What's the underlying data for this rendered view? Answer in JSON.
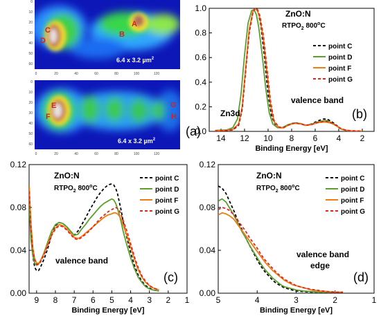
{
  "panel_a": {
    "label": "(a)",
    "map_top": {
      "scale_text": "6.4 x 3.2 µm",
      "scale_sup": "2",
      "point_labels": [
        "C",
        "D",
        "A",
        "B"
      ],
      "x_ticks": [
        "0",
        "20",
        "40",
        "60",
        "80",
        "100",
        "120"
      ],
      "y_ticks": [
        "0",
        "10",
        "20",
        "30",
        "40",
        "50",
        "60"
      ]
    },
    "map_bottom": {
      "scale_text": "6.4 x 3.2 µm",
      "scale_sup": "2",
      "point_labels": [
        "E",
        "F",
        "G",
        "H"
      ],
      "x_ticks": [
        "0",
        "20",
        "40",
        "60",
        "80",
        "100",
        "120"
      ],
      "y_ticks": [
        "0",
        "10",
        "20",
        "30",
        "40",
        "50",
        "60"
      ]
    }
  },
  "colors": {
    "point_c": "#000000",
    "point_d": "#5aa02c",
    "point_f": "#f07c10",
    "point_g": "#e8231c",
    "label_red": "#d42020"
  },
  "chart_data": [
    {
      "id": "b",
      "type": "line",
      "panel_label": "(b)",
      "title": "ZnO:N",
      "subtitle_parts": [
        "RTPO",
        "2",
        " 800",
        "o",
        "C"
      ],
      "xlabel": "Binding Energy [eV]",
      "xlim": [
        15,
        1
      ],
      "ylim": [
        0,
        1.0
      ],
      "x_reversed": true,
      "x_ticks": [
        14,
        12,
        10,
        8,
        6,
        4,
        2
      ],
      "y_ticks": [
        0.0,
        0.2,
        0.4,
        0.6,
        0.8,
        1.0
      ],
      "y_tick_labels": [
        "0.0",
        "0.2",
        "0.4",
        "0.6",
        "0.8",
        "1.0"
      ],
      "annotations": [
        "Zn3d",
        "valence band"
      ],
      "legend_position": "right",
      "series": [
        {
          "name": "point C",
          "style": "dashed",
          "x": [
            14.5,
            13.5,
            13.0,
            12.5,
            12.2,
            11.9,
            11.6,
            11.3,
            11.1,
            11.0,
            10.8,
            10.6,
            10.3,
            10.0,
            9.7,
            9.3,
            8.8,
            8.3,
            7.8,
            7.3,
            6.8,
            6.3,
            5.8,
            5.3,
            5.0,
            4.6,
            4.2,
            3.8,
            3.4,
            3.0,
            2.0
          ],
          "y": [
            0.005,
            0.008,
            0.012,
            0.05,
            0.18,
            0.5,
            0.82,
            0.97,
            1.0,
            1.0,
            0.95,
            0.85,
            0.6,
            0.3,
            0.12,
            0.04,
            0.03,
            0.05,
            0.07,
            0.065,
            0.05,
            0.06,
            0.085,
            0.1,
            0.1,
            0.08,
            0.05,
            0.02,
            0.01,
            0.005,
            0.002
          ]
        },
        {
          "name": "point D",
          "style": "solid",
          "x": [
            14.5,
            13.5,
            13.0,
            12.6,
            12.3,
            12.0,
            11.7,
            11.4,
            11.2,
            11.0,
            10.8,
            10.5,
            10.2,
            9.9,
            9.6,
            9.2,
            8.8,
            8.3,
            7.8,
            7.3,
            6.8,
            6.3,
            5.8,
            5.3,
            5.0,
            4.6,
            4.2,
            3.8,
            3.4,
            3.0,
            2.0
          ],
          "y": [
            0.008,
            0.012,
            0.03,
            0.1,
            0.3,
            0.62,
            0.88,
            0.98,
            0.99,
            0.95,
            0.85,
            0.62,
            0.35,
            0.15,
            0.06,
            0.03,
            0.03,
            0.055,
            0.068,
            0.064,
            0.05,
            0.058,
            0.076,
            0.086,
            0.088,
            0.07,
            0.045,
            0.018,
            0.008,
            0.004,
            0.002
          ]
        },
        {
          "name": "point F",
          "style": "solid",
          "x": [
            14.5,
            13.5,
            13.0,
            12.5,
            12.2,
            11.9,
            11.6,
            11.3,
            11.1,
            10.9,
            10.7,
            10.4,
            10.1,
            9.8,
            9.5,
            9.1,
            8.7,
            8.3,
            7.8,
            7.3,
            6.8,
            6.3,
            5.8,
            5.3,
            5.0,
            4.6,
            4.2,
            3.8,
            3.4,
            3.0,
            2.0
          ],
          "y": [
            0.005,
            0.008,
            0.015,
            0.06,
            0.2,
            0.52,
            0.83,
            0.97,
            1.0,
            0.98,
            0.92,
            0.75,
            0.48,
            0.22,
            0.08,
            0.03,
            0.028,
            0.05,
            0.065,
            0.062,
            0.048,
            0.055,
            0.07,
            0.076,
            0.075,
            0.065,
            0.045,
            0.02,
            0.009,
            0.004,
            0.002
          ]
        },
        {
          "name": "point G",
          "style": "dashed",
          "x": [
            14.5,
            13.5,
            13.0,
            12.5,
            12.2,
            11.9,
            11.6,
            11.3,
            11.1,
            10.9,
            10.7,
            10.4,
            10.1,
            9.8,
            9.5,
            9.1,
            8.7,
            8.3,
            7.8,
            7.3,
            6.8,
            6.3,
            5.8,
            5.3,
            5.0,
            4.6,
            4.2,
            3.8,
            3.4,
            3.0,
            2.0
          ],
          "y": [
            0.005,
            0.008,
            0.015,
            0.055,
            0.19,
            0.5,
            0.8,
            0.96,
            1.0,
            0.99,
            0.94,
            0.78,
            0.52,
            0.25,
            0.09,
            0.035,
            0.03,
            0.05,
            0.066,
            0.063,
            0.05,
            0.056,
            0.072,
            0.08,
            0.08,
            0.068,
            0.048,
            0.022,
            0.01,
            0.005,
            0.002
          ]
        }
      ]
    },
    {
      "id": "c",
      "type": "line",
      "panel_label": "(c)",
      "title": "ZnO:N",
      "subtitle_parts": [
        "RTPO",
        "2",
        " 800",
        "o",
        "C"
      ],
      "xlabel": "Binding Energy [eV]",
      "xlim": [
        9.4,
        1
      ],
      "ylim": [
        0,
        0.12
      ],
      "x_reversed": true,
      "x_ticks": [
        9,
        8,
        7,
        6,
        5,
        4,
        3,
        2,
        1
      ],
      "y_ticks": [
        0.0,
        0.04,
        0.08,
        0.12
      ],
      "y_tick_labels": [
        "0.00",
        "0.04",
        "0.08",
        "0.12"
      ],
      "annotations": [
        "valence band"
      ],
      "legend_position": "top-right",
      "series": [
        {
          "name": "point C",
          "style": "dashed",
          "x": [
            9.4,
            9.3,
            9.2,
            9.1,
            9.0,
            8.9,
            8.8,
            8.6,
            8.4,
            8.2,
            8.0,
            7.8,
            7.6,
            7.4,
            7.2,
            7.0,
            6.8,
            6.6,
            6.4,
            6.2,
            6.0,
            5.8,
            5.6,
            5.4,
            5.2,
            5.0,
            4.9,
            4.8,
            4.7,
            4.6,
            4.5,
            4.4,
            4.2,
            4.0,
            3.8,
            3.6,
            3.4,
            3.2,
            3.0,
            2.8,
            2.5
          ],
          "y": [
            0.1,
            0.06,
            0.035,
            0.024,
            0.021,
            0.021,
            0.024,
            0.032,
            0.042,
            0.055,
            0.063,
            0.066,
            0.065,
            0.062,
            0.058,
            0.054,
            0.058,
            0.064,
            0.07,
            0.077,
            0.083,
            0.089,
            0.094,
            0.098,
            0.101,
            0.102,
            0.101,
            0.098,
            0.093,
            0.085,
            0.077,
            0.067,
            0.052,
            0.038,
            0.026,
            0.017,
            0.011,
            0.007,
            0.005,
            0.003,
            0.002
          ]
        },
        {
          "name": "point D",
          "style": "solid",
          "x": [
            9.4,
            9.3,
            9.2,
            9.1,
            9.0,
            8.9,
            8.8,
            8.6,
            8.4,
            8.2,
            8.0,
            7.8,
            7.6,
            7.4,
            7.2,
            7.0,
            6.8,
            6.6,
            6.4,
            6.2,
            6.0,
            5.8,
            5.6,
            5.4,
            5.2,
            5.0,
            4.9,
            4.8,
            4.7,
            4.6,
            4.5,
            4.4,
            4.2,
            4.0,
            3.8,
            3.6,
            3.4,
            3.2,
            3.0,
            2.8,
            2.5
          ],
          "y": [
            0.085,
            0.05,
            0.035,
            0.028,
            0.026,
            0.027,
            0.03,
            0.038,
            0.048,
            0.058,
            0.064,
            0.066,
            0.065,
            0.062,
            0.058,
            0.054,
            0.055,
            0.06,
            0.064,
            0.069,
            0.073,
            0.077,
            0.081,
            0.084,
            0.086,
            0.088,
            0.087,
            0.084,
            0.079,
            0.073,
            0.066,
            0.058,
            0.045,
            0.033,
            0.023,
            0.015,
            0.01,
            0.006,
            0.004,
            0.003,
            0.002
          ]
        },
        {
          "name": "point F",
          "style": "solid",
          "x": [
            9.4,
            9.3,
            9.2,
            9.1,
            9.0,
            8.9,
            8.8,
            8.6,
            8.4,
            8.2,
            8.0,
            7.8,
            7.6,
            7.4,
            7.2,
            7.0,
            6.8,
            6.6,
            6.4,
            6.2,
            6.0,
            5.8,
            5.6,
            5.4,
            5.2,
            5.0,
            4.9,
            4.8,
            4.7,
            4.6,
            4.5,
            4.4,
            4.2,
            4.0,
            3.8,
            3.6,
            3.4,
            3.2,
            3.0,
            2.8,
            2.5
          ],
          "y": [
            0.1,
            0.065,
            0.042,
            0.032,
            0.028,
            0.028,
            0.03,
            0.037,
            0.046,
            0.055,
            0.061,
            0.064,
            0.063,
            0.06,
            0.056,
            0.052,
            0.051,
            0.053,
            0.056,
            0.059,
            0.062,
            0.065,
            0.068,
            0.071,
            0.073,
            0.074,
            0.075,
            0.075,
            0.074,
            0.072,
            0.069,
            0.064,
            0.054,
            0.043,
            0.032,
            0.022,
            0.015,
            0.01,
            0.007,
            0.005,
            0.003
          ]
        },
        {
          "name": "point G",
          "style": "dashed",
          "x": [
            9.4,
            9.3,
            9.2,
            9.1,
            9.0,
            8.9,
            8.8,
            8.6,
            8.4,
            8.2,
            8.0,
            7.8,
            7.6,
            7.4,
            7.2,
            7.0,
            6.8,
            6.6,
            6.4,
            6.2,
            6.0,
            5.8,
            5.6,
            5.4,
            5.2,
            5.0,
            4.9,
            4.8,
            4.7,
            4.6,
            4.5,
            4.4,
            4.2,
            4.0,
            3.8,
            3.6,
            3.4,
            3.2,
            3.0,
            2.8,
            2.5
          ],
          "y": [
            0.095,
            0.06,
            0.04,
            0.031,
            0.027,
            0.027,
            0.029,
            0.036,
            0.045,
            0.054,
            0.06,
            0.063,
            0.062,
            0.059,
            0.055,
            0.051,
            0.05,
            0.052,
            0.055,
            0.058,
            0.062,
            0.066,
            0.07,
            0.073,
            0.076,
            0.078,
            0.079,
            0.08,
            0.079,
            0.077,
            0.073,
            0.068,
            0.058,
            0.046,
            0.034,
            0.024,
            0.016,
            0.011,
            0.007,
            0.005,
            0.003
          ]
        }
      ]
    },
    {
      "id": "d",
      "type": "line",
      "panel_label": "(d)",
      "title": "ZnO:N",
      "subtitle_parts": [
        "RTPO",
        "2",
        " 800",
        "o",
        "C"
      ],
      "xlabel": "Binding Energy [eV]",
      "xlim": [
        5,
        1
      ],
      "ylim": [
        0,
        0.12
      ],
      "x_reversed": true,
      "x_ticks": [
        5,
        4,
        3,
        2,
        1
      ],
      "y_ticks": [
        0.0,
        0.04,
        0.08,
        0.12
      ],
      "y_tick_labels": [
        "0.00",
        "0.04",
        "0.08",
        "0.12"
      ],
      "annotations": [
        "valence band",
        "edge"
      ],
      "legend_position": "top-right",
      "series": [
        {
          "name": "point C",
          "style": "dashed",
          "x": [
            5.0,
            4.9,
            4.8,
            4.7,
            4.6,
            4.5,
            4.4,
            4.3,
            4.2,
            4.1,
            4.0,
            3.9,
            3.8,
            3.7,
            3.6,
            3.5,
            3.4,
            3.3,
            3.2,
            3.1,
            3.0,
            2.8,
            2.6,
            2.4,
            2.2,
            2.0,
            1.8
          ],
          "y": [
            0.1,
            0.098,
            0.093,
            0.085,
            0.077,
            0.068,
            0.06,
            0.052,
            0.045,
            0.038,
            0.031,
            0.025,
            0.02,
            0.016,
            0.012,
            0.009,
            0.007,
            0.005,
            0.004,
            0.003,
            0.002,
            0.0015,
            0.001,
            0.001,
            0.001,
            0.001,
            0.001
          ]
        },
        {
          "name": "point D",
          "style": "solid",
          "x": [
            5.0,
            4.9,
            4.8,
            4.7,
            4.6,
            4.5,
            4.4,
            4.3,
            4.2,
            4.1,
            4.0,
            3.9,
            3.8,
            3.7,
            3.6,
            3.5,
            3.4,
            3.3,
            3.2,
            3.1,
            3.0,
            2.8,
            2.6,
            2.4,
            2.2,
            2.0,
            1.8
          ],
          "y": [
            0.086,
            0.088,
            0.085,
            0.079,
            0.073,
            0.066,
            0.058,
            0.052,
            0.045,
            0.039,
            0.033,
            0.027,
            0.022,
            0.018,
            0.014,
            0.011,
            0.008,
            0.006,
            0.005,
            0.004,
            0.003,
            0.002,
            0.0015,
            0.001,
            0.001,
            0.001,
            0.001
          ]
        },
        {
          "name": "point F",
          "style": "solid",
          "x": [
            5.0,
            4.9,
            4.8,
            4.7,
            4.6,
            4.5,
            4.4,
            4.3,
            4.2,
            4.1,
            4.0,
            3.9,
            3.8,
            3.7,
            3.6,
            3.5,
            3.4,
            3.3,
            3.2,
            3.1,
            3.0,
            2.8,
            2.6,
            2.4,
            2.2,
            2.0,
            1.8
          ],
          "y": [
            0.073,
            0.075,
            0.074,
            0.072,
            0.069,
            0.064,
            0.059,
            0.054,
            0.049,
            0.044,
            0.039,
            0.034,
            0.029,
            0.025,
            0.021,
            0.018,
            0.015,
            0.012,
            0.01,
            0.008,
            0.007,
            0.005,
            0.003,
            0.002,
            0.0015,
            0.001,
            0.001
          ]
        },
        {
          "name": "point G",
          "style": "dashed",
          "x": [
            5.0,
            4.9,
            4.8,
            4.7,
            4.6,
            4.5,
            4.4,
            4.3,
            4.2,
            4.1,
            4.0,
            3.9,
            3.8,
            3.7,
            3.6,
            3.5,
            3.4,
            3.3,
            3.2,
            3.1,
            3.0,
            2.8,
            2.6,
            2.4,
            2.2,
            2.0,
            1.8
          ],
          "y": [
            0.078,
            0.08,
            0.079,
            0.077,
            0.073,
            0.068,
            0.063,
            0.058,
            0.052,
            0.047,
            0.042,
            0.036,
            0.031,
            0.027,
            0.023,
            0.019,
            0.016,
            0.013,
            0.011,
            0.009,
            0.007,
            0.005,
            0.0035,
            0.0025,
            0.0015,
            0.001,
            0.001
          ]
        }
      ]
    }
  ]
}
